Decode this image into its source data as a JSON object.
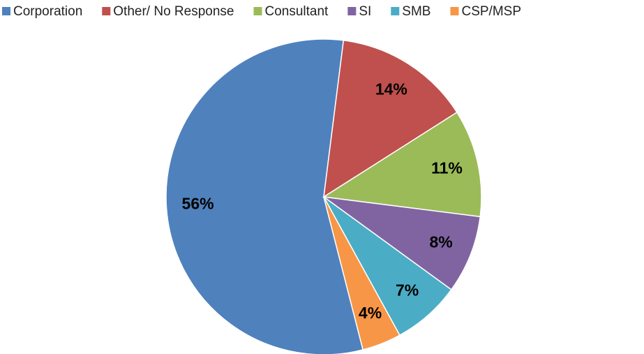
{
  "chart_data": {
    "type": "pie",
    "categories": [
      "Corporation",
      "Other/ No Response",
      "Consultant",
      "SI",
      "SMB",
      "CSP/MSP"
    ],
    "values": [
      56,
      14,
      11,
      8,
      7,
      4
    ],
    "value_labels": [
      "56%",
      "14%",
      "11%",
      "8%",
      "7%",
      "4%"
    ],
    "colors": [
      "#4f81bd",
      "#c0504d",
      "#9bbb59",
      "#8064a2",
      "#4bacc6",
      "#f79646"
    ],
    "legend": "top"
  }
}
